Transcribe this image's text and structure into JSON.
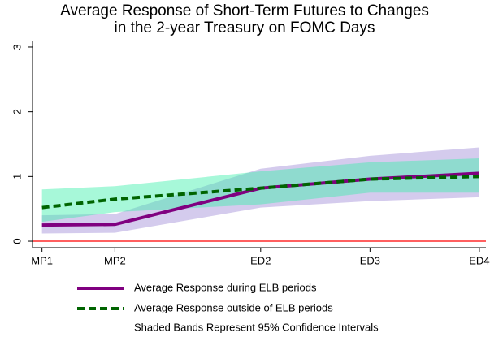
{
  "chart_data": {
    "type": "line",
    "title": [
      "Average Response of Short-Term Futures to Changes",
      "in the 2-year Treasury on FOMC Days"
    ],
    "x": [
      1,
      2,
      4,
      5.5,
      7
    ],
    "xlim": [
      0.87,
      7.09
    ],
    "xticks": [
      {
        "value": 1,
        "label": "MP1"
      },
      {
        "value": 2,
        "label": "MP2"
      },
      {
        "value": 4,
        "label": "ED2"
      },
      {
        "value": 5.5,
        "label": "ED3"
      },
      {
        "value": 7,
        "label": "ED4"
      }
    ],
    "ylim": [
      -0.1,
      3.1
    ],
    "yticks": [
      0,
      1,
      2,
      3
    ],
    "hline": 0,
    "hline_color": "#ff0000",
    "series": [
      {
        "name": "Average Response during ELB periods",
        "color": "#800080",
        "dash": false,
        "values": [
          0.25,
          0.26,
          0.82,
          0.96,
          1.05
        ],
        "lower": [
          0.12,
          0.13,
          0.52,
          0.62,
          0.68
        ],
        "upper": [
          0.4,
          0.42,
          1.12,
          1.32,
          1.45
        ],
        "band_color": "rgba(160,140,215,0.45)"
      },
      {
        "name": "Average Response outside of ELB periods",
        "color": "#006400",
        "dash": true,
        "values": [
          0.52,
          0.65,
          0.82,
          0.96,
          1.0
        ],
        "lower": [
          0.3,
          0.45,
          0.57,
          0.75,
          0.75
        ],
        "upper": [
          0.8,
          0.85,
          1.08,
          1.22,
          1.28
        ],
        "band_color": "rgba(60,240,170,0.45)"
      }
    ],
    "note": "Shaded Bands Represent 95% Confidence Intervals"
  }
}
